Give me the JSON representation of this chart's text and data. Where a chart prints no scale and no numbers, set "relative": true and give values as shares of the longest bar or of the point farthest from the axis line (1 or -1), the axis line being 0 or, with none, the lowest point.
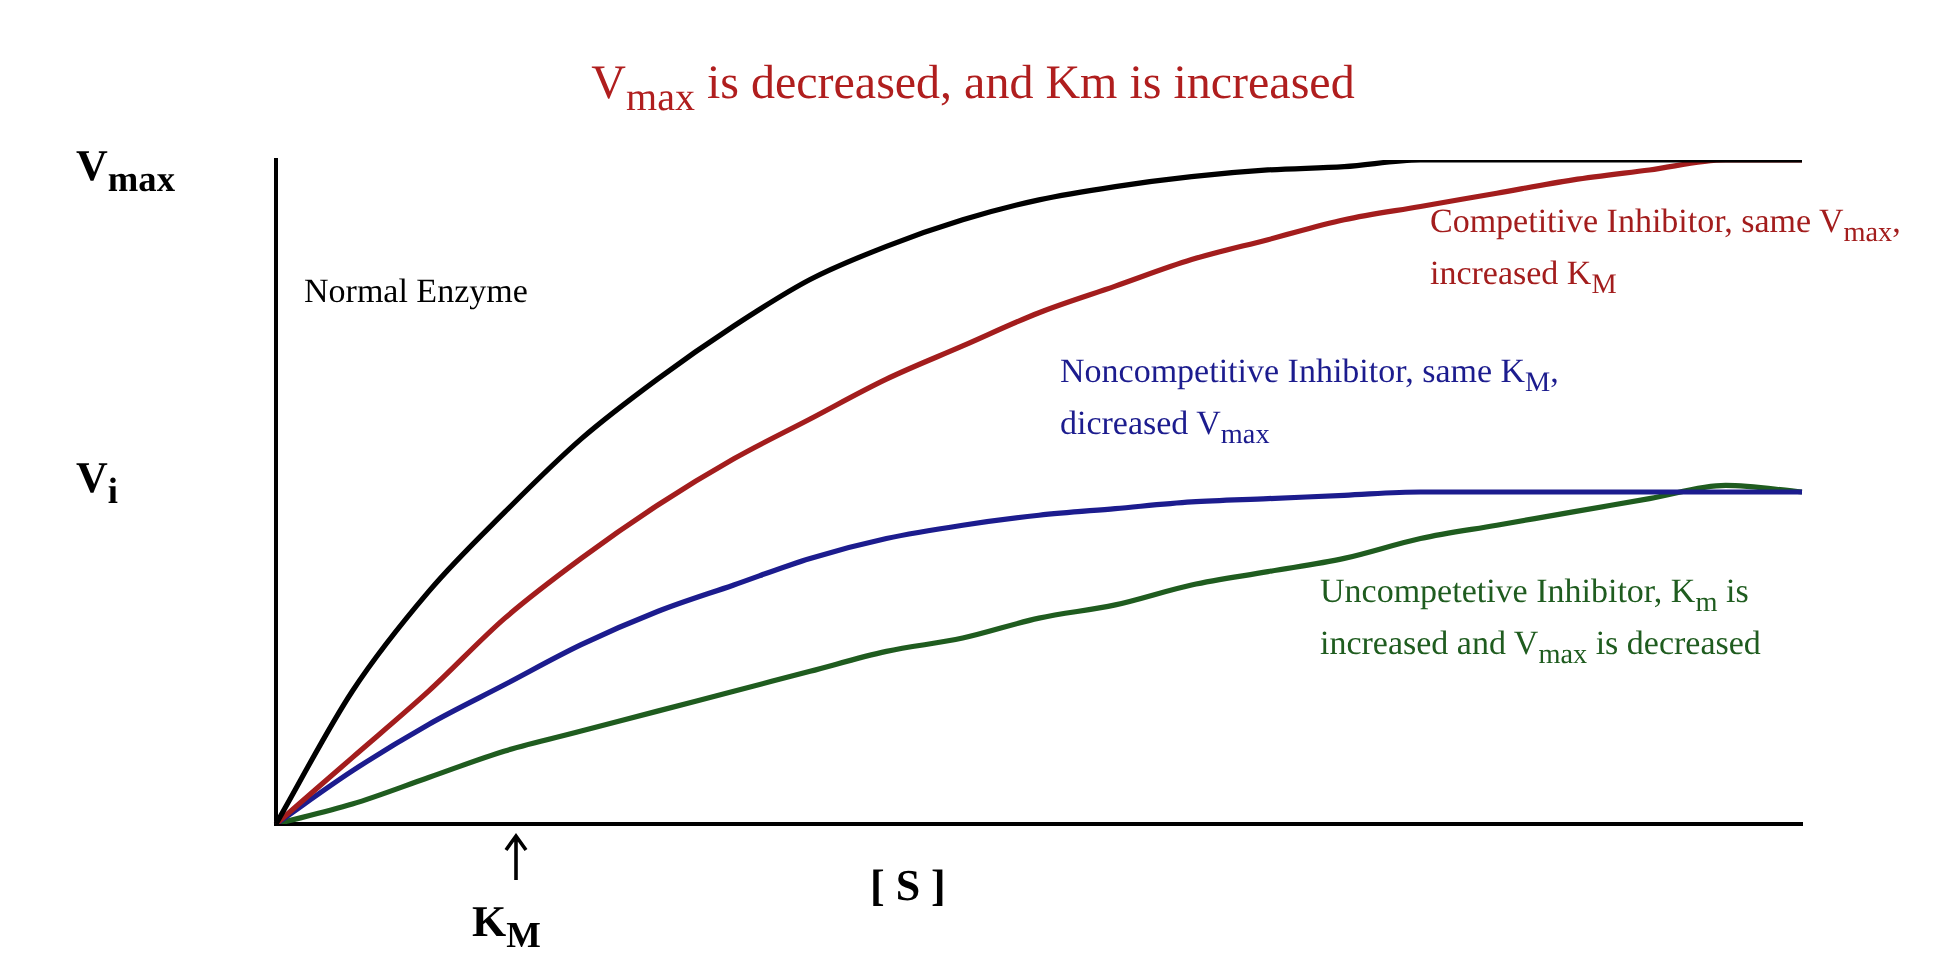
{
  "chart_data": {
    "type": "line",
    "relative": true,
    "title": "V$_{max}$ is decreased, and Km is increased",
    "xlabel": "[ S ]",
    "ylabel": "V$_{i}$",
    "annotations": [
      "V$_{max}$",
      "K$_{M}$"
    ],
    "categories": [
      null,
      null,
      null,
      null,
      null,
      null,
      null,
      null,
      null,
      null,
      null,
      null,
      null,
      null,
      null,
      null,
      null,
      null,
      null,
      null,
      null
    ],
    "marker": "none",
    "grid": false,
    "legend": false,
    "series": [
      {
        "name": "Normal Enzyme",
        "color": "#000000",
        "values": [
          0,
          0.2,
          0.35,
          0.47,
          0.58,
          0.67,
          0.75,
          0.82,
          0.87,
          0.91,
          0.94,
          0.96,
          0.975,
          0.985,
          0.99,
          1,
          1,
          1,
          1,
          1,
          1
        ]
      },
      {
        "name": "Competitive Inhibitor, same V$_{max}$, increased K$_{M}$",
        "color": "#a31d1d",
        "values": [
          0,
          0.1,
          0.2,
          0.31,
          0.4,
          0.48,
          0.55,
          0.61,
          0.67,
          0.72,
          0.77,
          0.81,
          0.85,
          0.88,
          0.91,
          0.93,
          0.95,
          0.97,
          0.985,
          1,
          1
        ]
      },
      {
        "name": "Noncompetitive Inhibitor, same K$_{M}$, dicreased V$_{max}$",
        "color": "#1c1c8e",
        "values": [
          0,
          0.08,
          0.15,
          0.21,
          0.27,
          0.32,
          0.36,
          0.4,
          0.43,
          0.45,
          0.465,
          0.475,
          0.485,
          0.49,
          0.495,
          0.5,
          0.5,
          0.5,
          0.5,
          0.5,
          0.5
        ]
      },
      {
        "name": "Uncompetetive Inhibitor, K$_{m}$ is increased and V$_{max}$ is decreased",
        "color": "#1f5c1f",
        "values": [
          0,
          0.03,
          0.07,
          0.11,
          0.14,
          0.17,
          0.2,
          0.23,
          0.26,
          0.28,
          0.31,
          0.33,
          0.36,
          0.38,
          0.4,
          0.43,
          0.45,
          0.47,
          0.49,
          0.51,
          0.5
        ]
      }
    ]
  }
}
